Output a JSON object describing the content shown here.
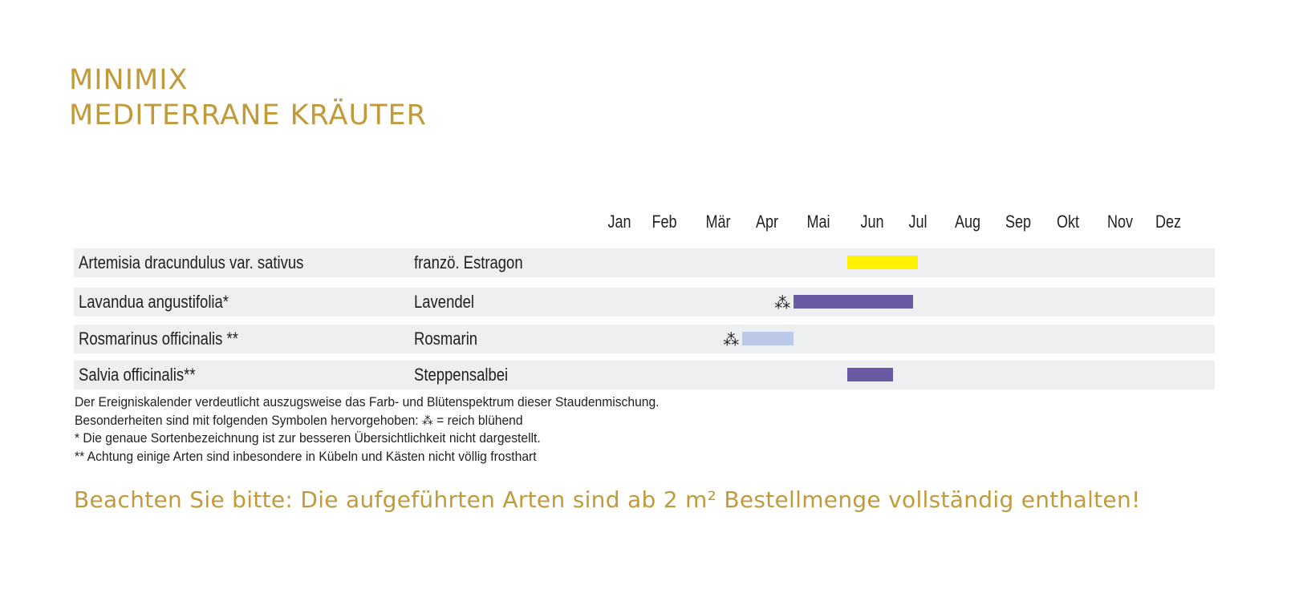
{
  "title": {
    "line1": "MINIMIX",
    "line2": "MEDITERRANE KRÄUTER"
  },
  "colors": {
    "title": "#c19a3c",
    "row_background": "#eeeff1",
    "yellow": "#fff200",
    "purple": "#6a5aa3",
    "light_blue": "#bcc8e8"
  },
  "chart_data": {
    "type": "gantt",
    "months": [
      "Jan",
      "Feb",
      "Mär",
      "Apr",
      "Mai",
      "Jun",
      "Jul",
      "Aug",
      "Sep",
      "Okt",
      "Nov",
      "Dez"
    ],
    "rows": [
      {
        "latin": "Artemisia dracundulus var. sativus",
        "common": "franzö. Estragon",
        "bloom_start": 6.0,
        "bloom_end": 7.5,
        "color": "#fff200",
        "symbol": ""
      },
      {
        "latin": "Lavandua angustifolia*",
        "common": "Lavendel",
        "bloom_start": 5.0,
        "bloom_end": 7.4,
        "color": "#6a5aa3",
        "symbol": "⁂"
      },
      {
        "latin": "Rosmarinus officinalis **",
        "common": "Rosmarin",
        "bloom_start": 4.0,
        "bloom_end": 5.0,
        "color": "#bcc8e8",
        "symbol": "⁂"
      },
      {
        "latin": "Salvia officinalis**",
        "common": "Steppensalbei",
        "bloom_start": 6.0,
        "bloom_end": 7.0,
        "color": "#6a5aa3",
        "symbol": ""
      }
    ]
  },
  "notes": {
    "line1": "Der Ereigniskalender verdeutlicht auszugsweise das Farb- und Blütenspektrum dieser Staudenmischung.",
    "line2_prefix": "Besonderheiten sind mit folgenden Symbolen hervorgehoben:",
    "line2_symbol": "⁂",
    "line2_suffix": "= reich blühend",
    "line3": "* Die genaue Sortenbezeichnung ist zur besseren Übersichtlichkeit nicht dargestellt.",
    "line4": "** Achtung einige Arten sind inbesondere in Kübeln und Kästen nicht völlig frosthart"
  },
  "footer": "Beachten Sie bitte: Die aufgeführten Arten sind ab 2 m² Bestellmenge vollständig enthalten!"
}
